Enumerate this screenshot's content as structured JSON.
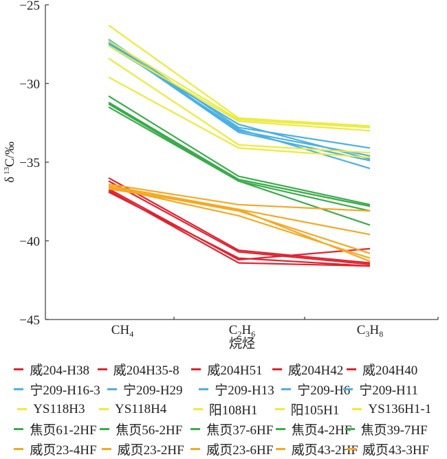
{
  "chart_data": {
    "type": "line",
    "title": "",
    "xlabel": "烷烃",
    "ylabel": "δ ¹³C/‰",
    "ylabel_parts": {
      "delta": "δ",
      "sup": "13",
      "rest": "C/‰"
    },
    "ylim": [
      -45,
      -25
    ],
    "yticks": [
      -25,
      -30,
      -35,
      -40,
      -45
    ],
    "ytick_labels": [
      "−25",
      "−30",
      "−35",
      "−40",
      "−45"
    ],
    "categories": [
      "CH4",
      "C2H6",
      "C3H8"
    ],
    "category_labels": [
      {
        "base": "CH",
        "n1": "",
        "h": "",
        "sub": "4"
      },
      {
        "base": "C",
        "n1": "2",
        "h": "H",
        "sub": "6"
      },
      {
        "base": "C",
        "n1": "3",
        "h": "H",
        "sub": "8"
      }
    ],
    "grid": false,
    "legend_position": "bottom",
    "series": [
      {
        "name": "威204-H38",
        "color": "#e0232f",
        "values": [
          -36.0,
          -40.6,
          -41.4
        ]
      },
      {
        "name": "威204H35-8",
        "color": "#e0232f",
        "values": [
          -36.2,
          -40.7,
          -41.5
        ]
      },
      {
        "name": "威204H51",
        "color": "#e0232f",
        "values": [
          -36.7,
          -41.2,
          -40.5
        ]
      },
      {
        "name": "威204H42",
        "color": "#e0232f",
        "values": [
          -36.8,
          -41.4,
          -41.6
        ]
      },
      {
        "name": "威204H40",
        "color": "#e0232f",
        "values": [
          -36.9,
          -41.1,
          -41.6
        ]
      },
      {
        "name": "宁209-H16-3",
        "color": "#4bb0e2",
        "values": [
          -27.2,
          -32.8,
          -34.1
        ]
      },
      {
        "name": "宁209-H29",
        "color": "#4bb0e2",
        "values": [
          -27.3,
          -33.0,
          -34.6
        ]
      },
      {
        "name": "宁209-H13",
        "color": "#4bb0e2",
        "values": [
          -27.4,
          -33.1,
          -34.9
        ]
      },
      {
        "name": "宁209-H6",
        "color": "#4bb0e2",
        "values": [
          -27.5,
          -32.9,
          -35.4
        ]
      },
      {
        "name": "宁209-H11",
        "color": "#4bb0e2",
        "values": [
          -27.6,
          -32.6,
          -34.8
        ]
      },
      {
        "name": "YS118H3",
        "color": "#ebeb3a",
        "values": [
          -26.3,
          -32.2,
          -32.7
        ]
      },
      {
        "name": "YS118H4",
        "color": "#ebeb3a",
        "values": [
          -27.3,
          -32.3,
          -32.8
        ]
      },
      {
        "name": "阳108H1",
        "color": "#ebeb3a",
        "values": [
          -27.6,
          -32.4,
          -33.0
        ]
      },
      {
        "name": "阳105H1",
        "color": "#ebeb3a",
        "values": [
          -28.4,
          -33.9,
          -34.4
        ]
      },
      {
        "name": "YS136H1-1",
        "color": "#ebeb3a",
        "values": [
          -29.6,
          -34.1,
          -34.7
        ]
      },
      {
        "name": "焦页61-2HF",
        "color": "#3bab4b",
        "values": [
          -30.8,
          -35.9,
          -37.7
        ]
      },
      {
        "name": "焦页56-2HF",
        "color": "#3bab4b",
        "values": [
          -31.2,
          -36.1,
          -37.8
        ]
      },
      {
        "name": "焦页37-6HF",
        "color": "#3bab4b",
        "values": [
          -31.3,
          -36.1,
          -37.8
        ]
      },
      {
        "name": "焦页4-2HF",
        "color": "#3bab4b",
        "values": [
          -31.5,
          -36.2,
          -38.1
        ]
      },
      {
        "name": "焦页39-7HF",
        "color": "#3bab4b",
        "values": [
          -31.3,
          -36.2,
          -39.0
        ]
      },
      {
        "name": "威页23-4HF",
        "color": "#f5a822",
        "values": [
          -36.4,
          -37.7,
          -38.1
        ]
      },
      {
        "name": "威页23-2HF",
        "color": "#f5a822",
        "values": [
          -36.5,
          -38.0,
          -39.6
        ]
      },
      {
        "name": "威页23-6HF",
        "color": "#f5a822",
        "values": [
          -36.6,
          -38.1,
          -40.8
        ]
      },
      {
        "name": "威页43-2HF",
        "color": "#f5a822",
        "values": [
          -36.6,
          -38.4,
          -41.1
        ]
      },
      {
        "name": "威页43-3HF",
        "color": "#f5a822",
        "values": [
          -36.7,
          -38.0,
          -41.3
        ]
      }
    ]
  }
}
